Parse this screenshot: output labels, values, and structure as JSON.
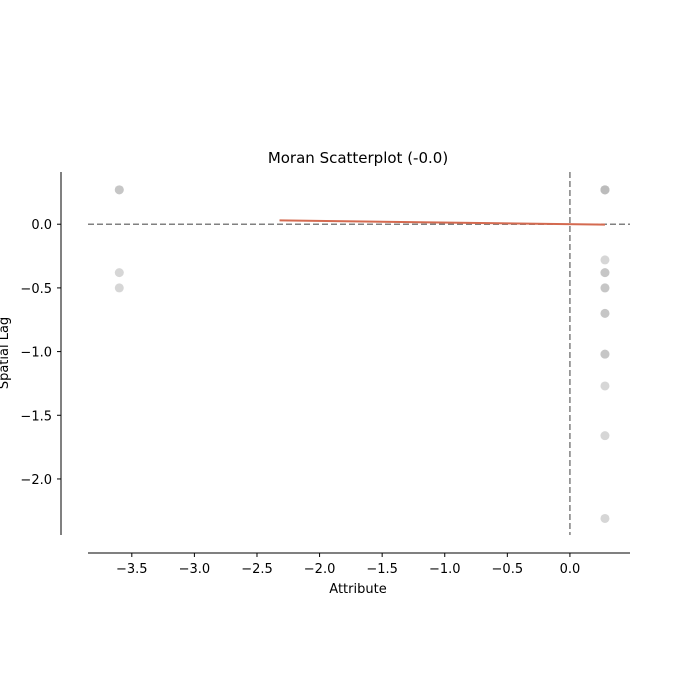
{
  "chart_data": {
    "type": "scatter",
    "title": "Moran Scatterplot (-0.0)",
    "xlabel": "Attribute",
    "ylabel": "Spatial Lag",
    "xlim": [
      -3.85,
      0.48
    ],
    "ylim": [
      -2.44,
      0.41
    ],
    "x_ticks": [
      -3.5,
      -3.0,
      -2.5,
      -2.0,
      -1.5,
      -1.0,
      -0.5,
      0.0
    ],
    "x_tick_labels": [
      "−3.5",
      "−3.0",
      "−2.5",
      "−2.0",
      "−1.5",
      "−1.0",
      "−0.5",
      "0.0"
    ],
    "y_ticks": [
      0.0,
      -0.5,
      -1.0,
      -1.5,
      -2.0
    ],
    "y_tick_labels": [
      "0.0",
      "−0.5",
      "−1.0",
      "−1.5",
      "−2.0"
    ],
    "reference_lines": {
      "x": 0.0,
      "y": 0.0,
      "style": "dashed",
      "color": "#808080"
    },
    "point_color": "#bababa",
    "fit_line_color": "#d46a50",
    "fit_line": [
      {
        "x": -2.32,
        "y": 0.03
      },
      {
        "x": 0.28,
        "y": -0.003
      }
    ],
    "points": [
      {
        "x": -3.6,
        "y": 0.27
      },
      {
        "x": -3.6,
        "y": 0.27
      },
      {
        "x": -3.6,
        "y": -0.38
      },
      {
        "x": -3.6,
        "y": -0.5
      },
      {
        "x": 0.28,
        "y": 0.27
      },
      {
        "x": 0.28,
        "y": 0.27
      },
      {
        "x": 0.28,
        "y": 0.27
      },
      {
        "x": 0.28,
        "y": 0.27
      },
      {
        "x": 0.28,
        "y": -0.28
      },
      {
        "x": 0.28,
        "y": -0.38
      },
      {
        "x": 0.28,
        "y": -0.38
      },
      {
        "x": 0.28,
        "y": -0.5
      },
      {
        "x": 0.28,
        "y": -0.5
      },
      {
        "x": 0.28,
        "y": -0.7
      },
      {
        "x": 0.28,
        "y": -0.7
      },
      {
        "x": 0.28,
        "y": -1.02
      },
      {
        "x": 0.28,
        "y": -1.02
      },
      {
        "x": 0.28,
        "y": -1.27
      },
      {
        "x": 0.28,
        "y": -1.66
      },
      {
        "x": 0.28,
        "y": -2.31
      }
    ]
  }
}
